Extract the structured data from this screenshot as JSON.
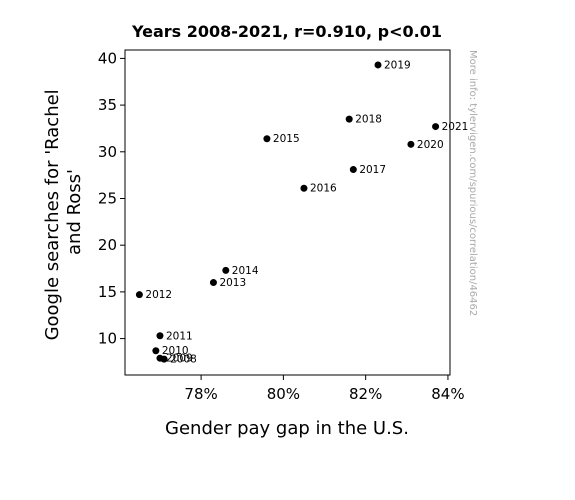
{
  "chart_data": {
    "type": "scatter",
    "title": "Years 2008-2021, r=0.910, p<0.01",
    "xlabel": "Gender pay gap in the U.S.",
    "ylabel_lines": [
      "Google searches for 'Rachel",
      "and Ross'"
    ],
    "xlim": [
      76.15,
      84.05
    ],
    "ylim": [
      6.1,
      40.9
    ],
    "x_ticks": [
      78,
      80,
      82,
      84
    ],
    "x_tick_suffix": "%",
    "y_ticks": [
      10,
      15,
      20,
      25,
      30,
      35,
      40
    ],
    "grid": false,
    "points": [
      {
        "label": "2008",
        "x": 77.1,
        "y": 7.8
      },
      {
        "label": "2009",
        "x": 77.0,
        "y": 7.9
      },
      {
        "label": "2010",
        "x": 76.9,
        "y": 8.7
      },
      {
        "label": "2011",
        "x": 77.0,
        "y": 10.3
      },
      {
        "label": "2012",
        "x": 76.5,
        "y": 14.7
      },
      {
        "label": "2013",
        "x": 78.3,
        "y": 16.0
      },
      {
        "label": "2014",
        "x": 78.6,
        "y": 17.3
      },
      {
        "label": "2015",
        "x": 79.6,
        "y": 31.4
      },
      {
        "label": "2016",
        "x": 80.5,
        "y": 26.1
      },
      {
        "label": "2017",
        "x": 81.7,
        "y": 28.1
      },
      {
        "label": "2018",
        "x": 81.6,
        "y": 33.5
      },
      {
        "label": "2019",
        "x": 82.3,
        "y": 39.3
      },
      {
        "label": "2020",
        "x": 83.1,
        "y": 30.8
      },
      {
        "label": "2021",
        "x": 83.7,
        "y": 32.7
      }
    ]
  },
  "watermark": "More info: tylervigen.com/spurious/correlation/46462"
}
